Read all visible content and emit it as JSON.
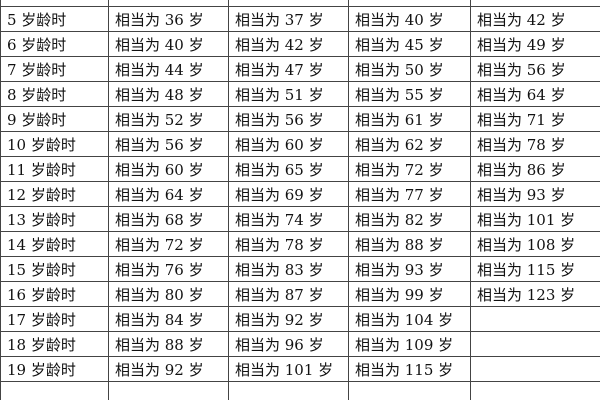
{
  "table": {
    "rows": [
      [
        "5 岁龄时",
        "相当为 36 岁",
        "相当为 37 岁",
        "相当为 40 岁",
        "相当为 42 岁"
      ],
      [
        "6 岁龄时",
        "相当为 40 岁",
        "相当为 42 岁",
        "相当为 45 岁",
        "相当为 49 岁"
      ],
      [
        "7 岁龄时",
        "相当为 44 岁",
        "相当为 47 岁",
        "相当为 50 岁",
        "相当为 56 岁"
      ],
      [
        "8 岁龄时",
        "相当为 48 岁",
        "相当为 51 岁",
        "相当为 55 岁",
        "相当为 64 岁"
      ],
      [
        "9 岁龄时",
        "相当为 52 岁",
        "相当为 56 岁",
        "相当为 61 岁",
        "相当为 71 岁"
      ],
      [
        "10 岁龄时",
        "相当为 56 岁",
        "相当为 60 岁",
        "相当为 62 岁",
        "相当为 78 岁"
      ],
      [
        "11 岁龄时",
        "相当为 60 岁",
        "相当为 65 岁",
        "相当为 72 岁",
        "相当为 86 岁"
      ],
      [
        "12 岁龄时",
        "相当为 64 岁",
        "相当为 69 岁",
        "相当为 77 岁",
        "相当为 93 岁"
      ],
      [
        "13 岁龄时",
        "相当为 68 岁",
        "相当为 74 岁",
        "相当为 82 岁",
        "相当为 101 岁"
      ],
      [
        "14 岁龄时",
        "相当为 72 岁",
        "相当为 78 岁",
        "相当为 88 岁",
        "相当为 108 岁"
      ],
      [
        "15 岁龄时",
        "相当为 76 岁",
        "相当为 83 岁",
        "相当为 93 岁",
        "相当为 115 岁"
      ],
      [
        "16 岁龄时",
        "相当为 80 岁",
        "相当为 87 岁",
        "相当为 99 岁",
        "相当为 123 岁"
      ],
      [
        "17 岁龄时",
        "相当为 84 岁",
        "相当为 92 岁",
        "相当为 104 岁"
      ],
      [
        "18 岁龄时",
        "相当为 88 岁",
        "相当为 96 岁",
        "相当为 109 岁"
      ],
      [
        "19 岁龄时",
        "相当为 92 岁",
        "相当为 101 岁",
        "相当为 115 岁"
      ]
    ]
  }
}
